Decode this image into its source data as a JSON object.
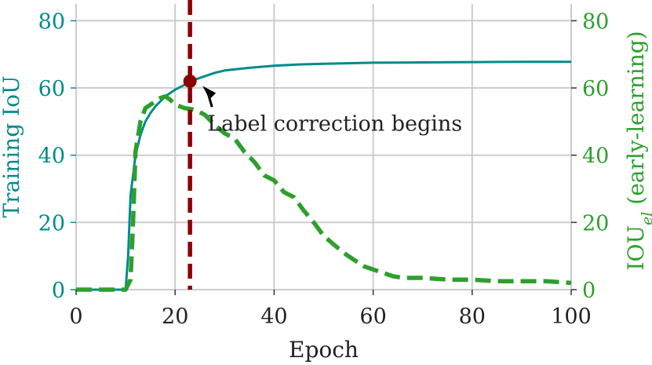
{
  "chart_data": {
    "type": "line",
    "xlabel": "Epoch",
    "ylabel_left": "Training IoU",
    "ylabel_right_main": "IOU",
    "ylabel_right_sub": "el",
    "ylabel_right_suffix": " (early-learning)",
    "xlim": [
      0,
      100
    ],
    "ylim_left": [
      0,
      85
    ],
    "ylim_right": [
      0,
      85
    ],
    "x_ticks": [
      0,
      20,
      40,
      60,
      80,
      100
    ],
    "y_ticks_left": [
      0,
      20,
      40,
      60,
      80
    ],
    "y_ticks_right": [
      0,
      20,
      40,
      60,
      80
    ],
    "grid": true,
    "colors": {
      "training": "#008b8b",
      "early": "#2ca02c",
      "vline": "#8b0000",
      "grid": "#cccccc",
      "axis": "#cccccc"
    },
    "series": [
      {
        "axis": "left",
        "style": "solid",
        "x": [
          0,
          10,
          10.5,
          11,
          12,
          13,
          14,
          15,
          16,
          17,
          18,
          19,
          20,
          22,
          24,
          26,
          28,
          30,
          35,
          40,
          45,
          50,
          60,
          70,
          80,
          90,
          100
        ],
        "y": [
          0,
          0,
          10,
          28,
          40,
          46,
          50,
          52.5,
          54.5,
          56,
          57.5,
          58.5,
          59.5,
          61,
          62.5,
          63.5,
          64.5,
          65.2,
          66,
          66.6,
          67,
          67.2,
          67.5,
          67.6,
          67.7,
          67.8,
          67.8
        ]
      },
      {
        "axis": "right",
        "style": "dashed",
        "x": [
          0,
          10,
          11,
          11.5,
          12,
          13,
          14,
          15,
          16,
          17,
          18,
          19,
          20,
          22,
          24,
          26,
          28,
          30,
          32,
          34,
          36,
          38,
          40,
          42,
          44,
          46,
          48,
          50,
          52,
          54,
          56,
          58,
          60,
          62,
          64,
          66,
          68,
          70,
          75,
          80,
          85,
          90,
          95,
          100
        ],
        "y": [
          0,
          0,
          3,
          20,
          41,
          50,
          54,
          55,
          56,
          57,
          57.5,
          56.5,
          55,
          54,
          53.5,
          52,
          49,
          46.5,
          45,
          41,
          38,
          34,
          32.5,
          29,
          27.5,
          23.5,
          20,
          16,
          13.5,
          11,
          9,
          7,
          6,
          5,
          4,
          3.5,
          3.5,
          3.5,
          3,
          3,
          2.5,
          2.5,
          2.5,
          2
        ]
      }
    ],
    "vline": {
      "x": 23
    },
    "marker": {
      "x": 23,
      "y": 62
    },
    "annotation": {
      "text": "Label correction begins",
      "x": 26.5,
      "y": 59
    }
  }
}
